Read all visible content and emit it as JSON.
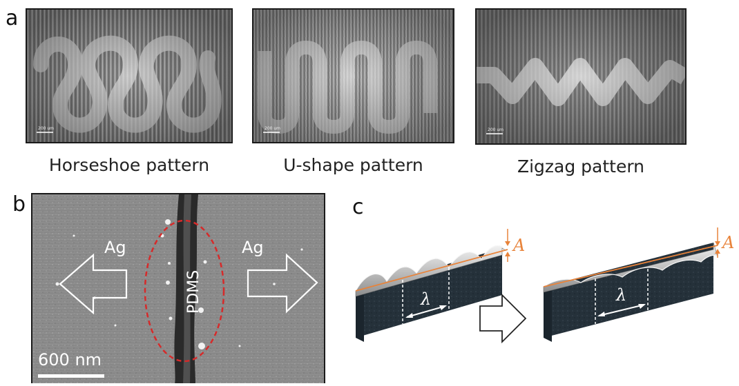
{
  "panels": {
    "a": {
      "letter": "a",
      "images": [
        {
          "caption": "Horseshoe pattern",
          "scale_label": "200 um"
        },
        {
          "caption": "U-shape pattern",
          "scale_label": "200 um"
        },
        {
          "caption": "Zigzag pattern",
          "scale_label": "200 um"
        }
      ]
    },
    "b": {
      "letter": "b",
      "left_label": "Ag",
      "right_label": "Ag",
      "center_label": "PDMS",
      "scale_label": "600 nm",
      "highlight_color": "#d62a2a"
    },
    "c": {
      "letter": "c",
      "amplitude_symbol": "A",
      "wavelength_symbol": "λ",
      "accent_color": "#e8833a"
    }
  }
}
